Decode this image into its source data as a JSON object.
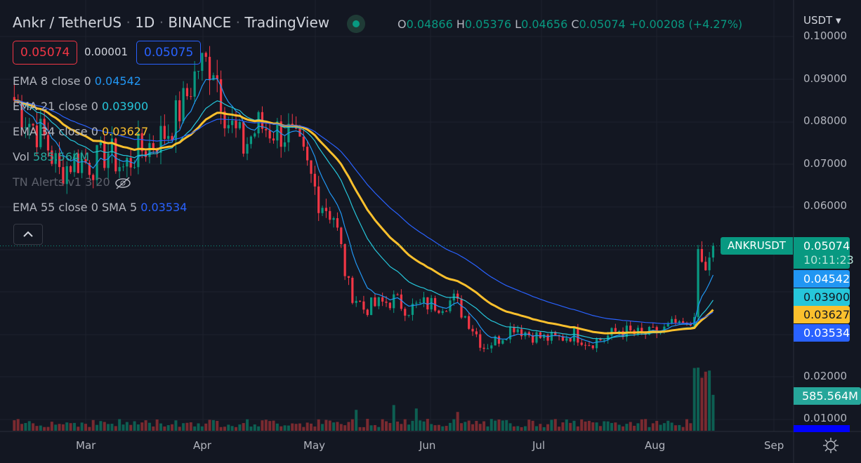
{
  "header": {
    "symbol": "Ankr / TetherUS",
    "interval": "1D",
    "exchange": "BINANCE",
    "source": "TradingView",
    "status": "market-open",
    "ohlc": {
      "o_label": "O",
      "o": "0.04866",
      "h_label": "H",
      "h": "0.05376",
      "l_label": "L",
      "l": "0.04656",
      "c_label": "C",
      "c": "0.05074",
      "change": "+0.00208 (+4.27%)"
    }
  },
  "trade": {
    "sell": "0.05074",
    "spread": "0.00001",
    "buy": "0.05075"
  },
  "indicators": [
    {
      "label": "EMA 8 close 0",
      "value": "0.04542",
      "color": "#2196f3"
    },
    {
      "label": "EMA 21 close 0",
      "value": "0.03900",
      "color": "#26c6da"
    },
    {
      "label": "EMA 34 close 0",
      "value": "0.03627",
      "color": "#fbc02d"
    },
    {
      "label": "Vol",
      "value": "585.564M",
      "color": "#26a69a"
    },
    {
      "label": "TN Alerts v1 3 20",
      "value": "",
      "color": "#5d606b"
    },
    {
      "label": "EMA 55 close 0 SMA 5",
      "value": "0.03534",
      "color": "#2962ff"
    }
  ],
  "currency": "USDT",
  "price_axis": {
    "ticks": [
      "0.10000",
      "0.09000",
      "0.08000",
      "0.07000",
      "0.06000",
      "0.02000",
      "0.01000"
    ],
    "symbol_label": "ANKRUSDT",
    "last_price": "0.05074",
    "countdown": "10:11:23",
    "ema_labels": [
      "0.04542",
      "0.03900",
      "0.03627",
      "0.03534"
    ],
    "volume_label": "585.564M"
  },
  "time_axis": {
    "ticks": [
      "Mar",
      "Apr",
      "May",
      "Jun",
      "Jul",
      "Aug",
      "Sep"
    ]
  },
  "colors": {
    "up": "#089981",
    "down": "#f23645",
    "background": "#131722",
    "grid": "#1e222d"
  },
  "chart_data": {
    "type": "candlestick",
    "ylim": [
      0.005,
      0.105
    ],
    "closes": [
      [
        "Feb 11",
        0.085
      ],
      [
        "Feb 15",
        0.08
      ],
      [
        "Feb 19",
        0.076
      ],
      [
        "Feb 23",
        0.068
      ],
      [
        "Feb 27",
        0.071
      ],
      [
        "Mar 3",
        0.07
      ],
      [
        "Mar 7",
        0.073
      ],
      [
        "Mar 11",
        0.069
      ],
      [
        "Mar 15",
        0.073
      ],
      [
        "Mar 19",
        0.075
      ],
      [
        "Mar 23",
        0.078
      ],
      [
        "Mar 27",
        0.084
      ],
      [
        "Mar 31",
        0.093
      ],
      [
        "Apr 4",
        0.094
      ],
      [
        "Apr 8",
        0.08
      ],
      [
        "Apr 12",
        0.074
      ],
      [
        "Apr 16",
        0.079
      ],
      [
        "Apr 20",
        0.078
      ],
      [
        "Apr 24",
        0.077
      ],
      [
        "Apr 28",
        0.071
      ],
      [
        "May 2",
        0.062
      ],
      [
        "May 6",
        0.058
      ],
      [
        "May 10",
        0.041
      ],
      [
        "May 14",
        0.036
      ],
      [
        "May 18",
        0.037
      ],
      [
        "May 22",
        0.038
      ],
      [
        "May 26",
        0.036
      ],
      [
        "May 30",
        0.037
      ],
      [
        "Jun 3",
        0.037
      ],
      [
        "Jun 7",
        0.038
      ],
      [
        "Jun 11",
        0.033
      ],
      [
        "Jun 15",
        0.027
      ],
      [
        "Jun 19",
        0.029
      ],
      [
        "Jun 23",
        0.032
      ],
      [
        "Jun 27",
        0.03
      ],
      [
        "Jul 1",
        0.029
      ],
      [
        "Jul 5",
        0.029
      ],
      [
        "Jul 9",
        0.03
      ],
      [
        "Jul 13",
        0.028
      ],
      [
        "Jul 17",
        0.029
      ],
      [
        "Jul 21",
        0.031
      ],
      [
        "Jul 25",
        0.03
      ],
      [
        "Jul 29",
        0.03
      ],
      [
        "Aug 2",
        0.031
      ],
      [
        "Aug 6",
        0.033
      ],
      [
        "Aug 9",
        0.032
      ],
      [
        "Aug 10",
        0.034
      ],
      [
        "Aug 11",
        0.05
      ],
      [
        "Aug 12",
        0.047
      ],
      [
        "Aug 13",
        0.045
      ],
      [
        "Aug 14",
        0.048
      ],
      [
        "Aug 15",
        0.05074
      ]
    ]
  }
}
